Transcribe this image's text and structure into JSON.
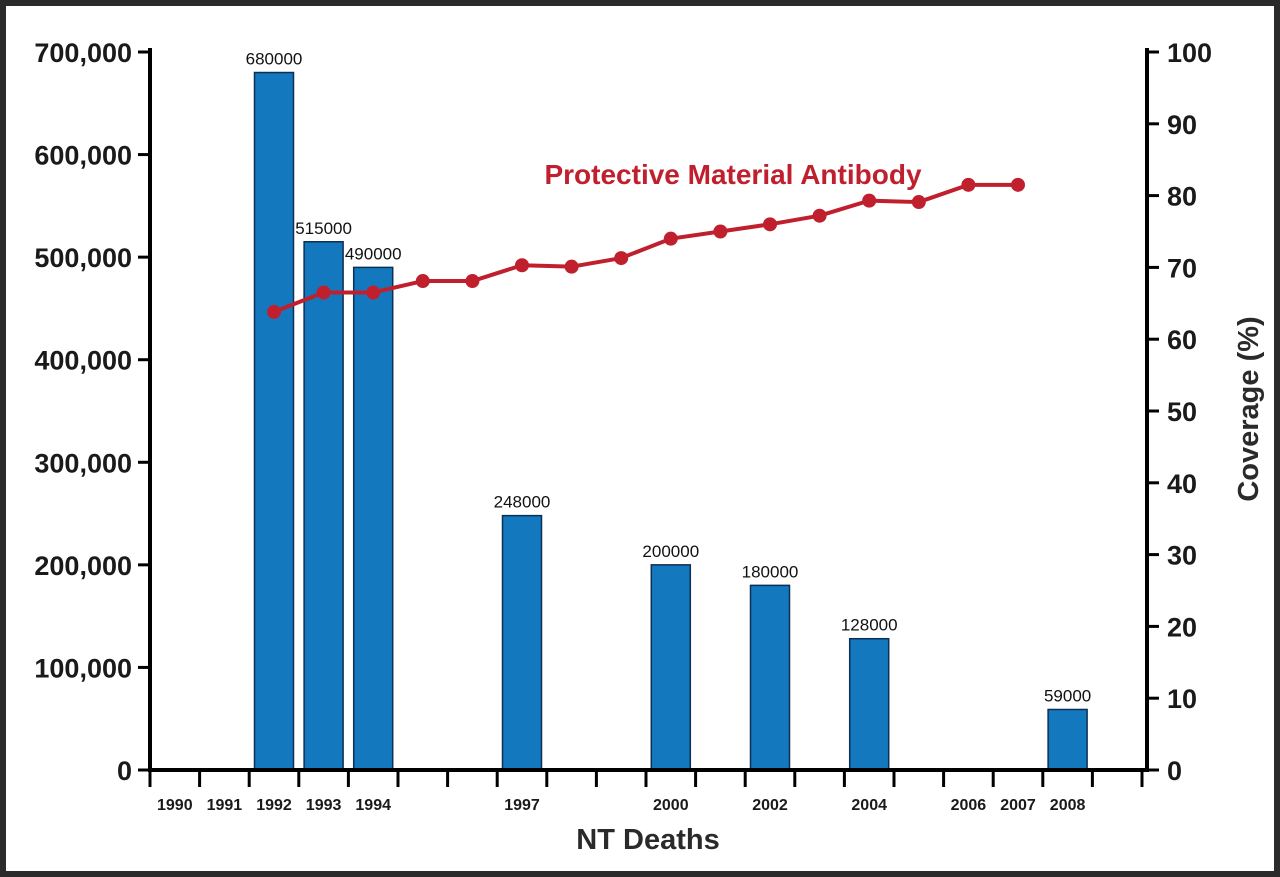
{
  "colors": {
    "bar": "#1478be",
    "line": "#c0202e",
    "axis": "#000000"
  },
  "chart_data": {
    "type": "bar",
    "title": "",
    "xlabel": "NT Deaths",
    "ylabel": "",
    "y2label": "Coverage (%)",
    "slots": [
      1990,
      1991,
      1992,
      1993,
      1994,
      1995,
      1996,
      1997,
      1998,
      1999,
      2000,
      2001,
      2002,
      2003,
      2004,
      2005,
      2006,
      2007,
      2008,
      2009
    ],
    "x_tick_labels": [
      {
        "slot": 1990,
        "text": "1990"
      },
      {
        "slot": 1991,
        "text": "1991"
      },
      {
        "slot": 1992,
        "text": "1992"
      },
      {
        "slot": 1993,
        "text": "1993"
      },
      {
        "slot": 1994,
        "text": "1994"
      },
      {
        "slot": 1997,
        "text": "1997"
      },
      {
        "slot": 2000,
        "text": "2000"
      },
      {
        "slot": 2002,
        "text": "2002"
      },
      {
        "slot": 2004,
        "text": "2004"
      },
      {
        "slot": 2006,
        "text": "2006"
      },
      {
        "slot": 2007,
        "text": "2007"
      },
      {
        "slot": 2008,
        "text": "2008"
      }
    ],
    "bars": {
      "name": "NT Deaths",
      "x": [
        1992,
        1993,
        1994,
        1997,
        2000,
        2002,
        2004,
        2008
      ],
      "values": [
        680000,
        515000,
        490000,
        248000,
        200000,
        180000,
        128000,
        59000
      ],
      "labels": [
        "680000",
        "515000",
        "490000",
        "248000",
        "200000",
        "180000",
        "128000",
        "59000"
      ]
    },
    "line": {
      "name": "Protective Material Antibody",
      "x": [
        1992,
        1993,
        1994,
        1995,
        1996,
        1997,
        1998,
        1999,
        2000,
        2001,
        2002,
        2003,
        2004,
        2005,
        2006,
        2007
      ],
      "values": [
        63.8,
        66.5,
        66.5,
        68.1,
        68.1,
        70.3,
        70.1,
        71.3,
        74.0,
        75.0,
        76.0,
        77.2,
        79.3,
        79.1,
        81.5,
        81.5
      ]
    },
    "y_left": {
      "ylim": [
        0,
        700000
      ],
      "ticks": [
        0,
        100000,
        200000,
        300000,
        400000,
        500000,
        600000,
        700000
      ],
      "tick_labels": [
        "0",
        "100,000",
        "200,000",
        "300,000",
        "400,000",
        "500,000",
        "600,000",
        "700,000"
      ]
    },
    "y_right": {
      "ylim": [
        0,
        100
      ],
      "ticks": [
        0,
        10,
        20,
        30,
        40,
        50,
        60,
        70,
        80,
        90,
        100
      ],
      "tick_labels": [
        "0",
        "10",
        "20",
        "30",
        "40",
        "50",
        "60",
        "70",
        "80",
        "90",
        "100"
      ]
    },
    "grid": false
  }
}
